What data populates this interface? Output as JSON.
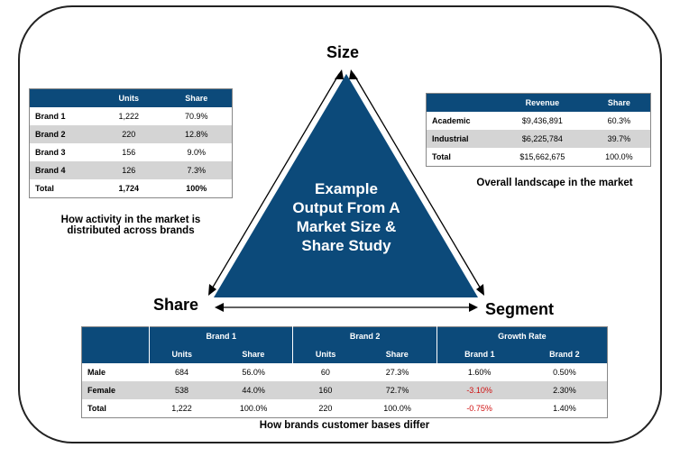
{
  "center_text": [
    "Example",
    "Output From A",
    "Market Size &",
    "Share Study"
  ],
  "labels": {
    "size": "Size",
    "share": "Share",
    "segment": "Segment"
  },
  "brands_table": {
    "headers": [
      "",
      "Units",
      "Share"
    ],
    "rows": [
      [
        "Brand 1",
        "1,222",
        "70.9%"
      ],
      [
        "Brand 2",
        "220",
        "12.8%"
      ],
      [
        "Brand 3",
        "156",
        "9.0%"
      ],
      [
        "Brand 4",
        "126",
        "7.3%"
      ],
      [
        "Total",
        "1,724",
        "100%"
      ]
    ],
    "caption": "How activity in the market is distributed across brands"
  },
  "landscape_table": {
    "headers": [
      "",
      "Revenue",
      "Share"
    ],
    "rows": [
      [
        "Academic",
        "$9,436,891",
        "60.3%"
      ],
      [
        "Industrial",
        "$6,225,784",
        "39.7%"
      ],
      [
        "Total",
        "$15,662,675",
        "100.0%"
      ]
    ],
    "caption": "Overall landscape in the market"
  },
  "segment_table": {
    "group_headers": [
      "Brand 1",
      "Brand 2",
      "Growth Rate"
    ],
    "sub_headers": [
      "Units",
      "Share",
      "Units",
      "Share",
      "Brand 1",
      "Brand 2"
    ],
    "rows": [
      [
        "Male",
        "684",
        "56.0%",
        "60",
        "27.3%",
        "1.60%",
        "0.50%"
      ],
      [
        "Female",
        "538",
        "44.0%",
        "160",
        "72.7%",
        "-3.10%",
        "2.30%"
      ],
      [
        "Total",
        "1,222",
        "100.0%",
        "220",
        "100.0%",
        "-0.75%",
        "1.40%"
      ]
    ],
    "caption": "How brands customer bases differ"
  },
  "colors": {
    "primary": "#0c4a7a",
    "negative": "#d01010",
    "shade": "#d4d4d4"
  }
}
